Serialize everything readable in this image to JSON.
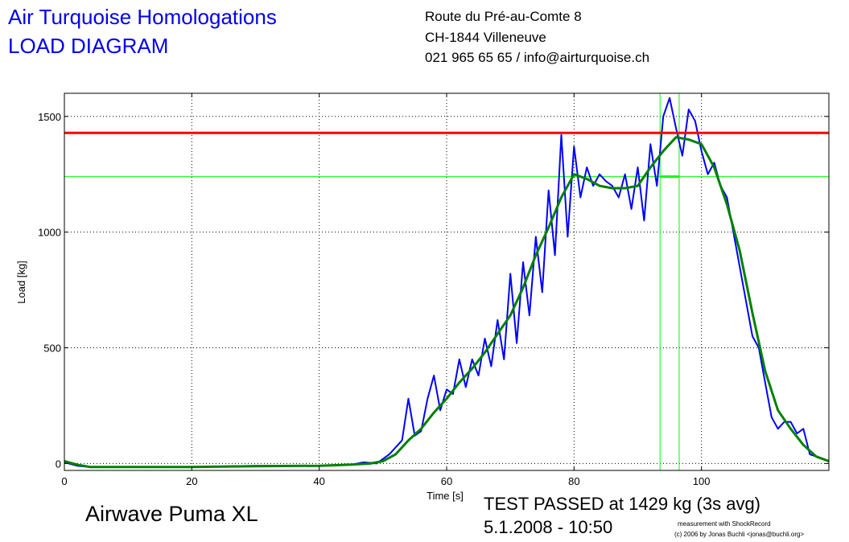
{
  "header": {
    "company": "Air Turquoise Homologations",
    "diagram_title": "LOAD DIAGRAM",
    "address_line1": "Route du Pré-au-Comte 8",
    "address_line2": "CH-1844 Villeneuve",
    "contact_line": "021 965 65 65 / info@airturquoise.ch"
  },
  "footer": {
    "subject": "Airwave Puma XL",
    "result": "TEST PASSED at 1429 kg (3s avg)",
    "datetime": "5.1.2008 - 10:50",
    "credit_line1": "measurement with ShockRecord",
    "credit_line2": "(c) 2006 by Jonas Buchli <jonas@buchli.org>"
  },
  "chart_data": {
    "type": "line",
    "xlabel": "Time [s]",
    "ylabel": "Load [kg]",
    "xlim": [
      0,
      120
    ],
    "ylim": [
      -30,
      1600
    ],
    "xticks": [
      0,
      20,
      40,
      60,
      80,
      100
    ],
    "yticks": [
      0,
      500,
      1000,
      1500
    ],
    "grid": true,
    "colors": {
      "raw": "#0000ff",
      "avg": "#008000",
      "threshold": "#ff0000",
      "marker": "#00ff00"
    },
    "threshold_load": 1429,
    "reference_load": 1240,
    "avg_window": [
      93.5,
      96.5
    ],
    "series": [
      {
        "style": "raw",
        "x": [
          0,
          2,
          4,
          10,
          20,
          30,
          40,
          45,
          47,
          49,
          51,
          53,
          54,
          55,
          56,
          57,
          58,
          59,
          60,
          61,
          62,
          63,
          64,
          65,
          66,
          67,
          68,
          69,
          70,
          71,
          72,
          73,
          74,
          75,
          76,
          77,
          78,
          79,
          80,
          81,
          82,
          83,
          84,
          85,
          86,
          87,
          88,
          89,
          90,
          91,
          92,
          93,
          94,
          95,
          96,
          97,
          98,
          99,
          100,
          101,
          102,
          103,
          104,
          105,
          106,
          107,
          108,
          109,
          110,
          111,
          112,
          113,
          114,
          115,
          116,
          117,
          118,
          119,
          120
        ],
        "y": [
          5,
          -10,
          -15,
          -15,
          -15,
          -10,
          -10,
          -5,
          5,
          0,
          40,
          100,
          280,
          120,
          140,
          280,
          380,
          230,
          320,
          300,
          450,
          330,
          450,
          380,
          540,
          420,
          620,
          450,
          820,
          520,
          870,
          640,
          980,
          740,
          1180,
          900,
          1420,
          980,
          1370,
          1150,
          1280,
          1200,
          1250,
          1220,
          1200,
          1150,
          1250,
          1100,
          1280,
          1050,
          1380,
          1200,
          1500,
          1580,
          1450,
          1330,
          1530,
          1480,
          1350,
          1250,
          1300,
          1200,
          1150,
          1000,
          850,
          700,
          550,
          500,
          350,
          200,
          150,
          180,
          180,
          130,
          150,
          40,
          30,
          20,
          10
        ]
      },
      {
        "style": "avg",
        "x": [
          0,
          2,
          4,
          10,
          20,
          30,
          40,
          45,
          48,
          50,
          52,
          54,
          56,
          58,
          60,
          62,
          64,
          66,
          68,
          70,
          72,
          74,
          76,
          78,
          80,
          82,
          84,
          86,
          88,
          90,
          92,
          94,
          96,
          98,
          100,
          102,
          104,
          106,
          108,
          110,
          112,
          114,
          116,
          118,
          120
        ],
        "y": [
          10,
          -5,
          -15,
          -15,
          -15,
          -12,
          -10,
          -5,
          0,
          10,
          40,
          100,
          150,
          220,
          280,
          350,
          410,
          480,
          560,
          640,
          760,
          900,
          1020,
          1150,
          1250,
          1230,
          1200,
          1190,
          1190,
          1200,
          1280,
          1350,
          1410,
          1400,
          1380,
          1280,
          1120,
          920,
          650,
          400,
          230,
          150,
          80,
          30,
          10
        ]
      }
    ]
  }
}
